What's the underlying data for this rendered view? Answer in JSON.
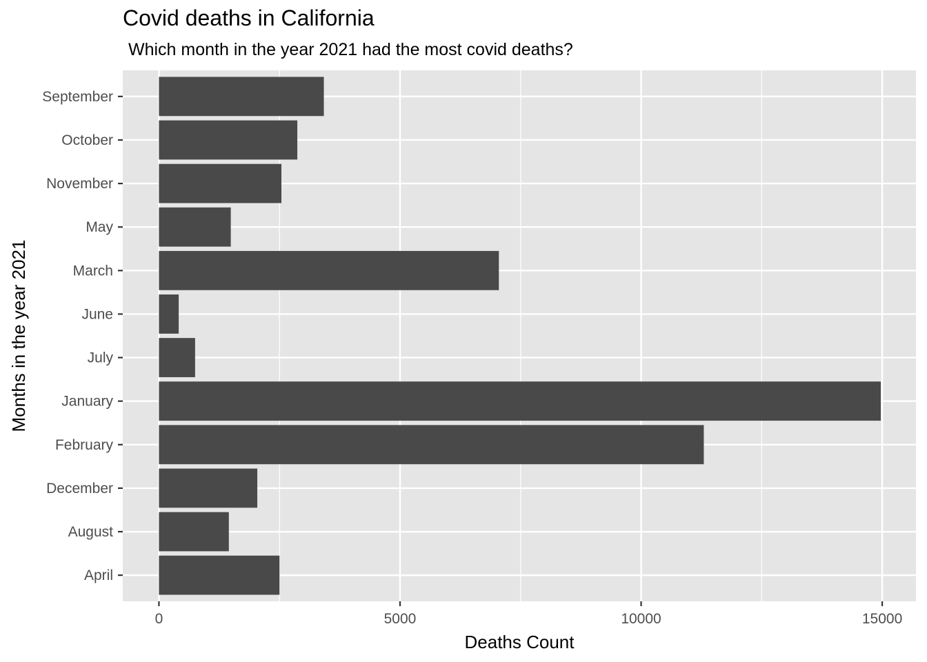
{
  "chart_data": {
    "type": "bar",
    "orientation": "horizontal",
    "title": "Covid deaths in California",
    "subtitle": "Which month in the year 2021 had the most covid deaths?",
    "xlabel": "Deaths Count",
    "ylabel": "Months in the year 2021",
    "xlim": [
      -750,
      15700
    ],
    "xticks": [
      0,
      5000,
      10000,
      15000
    ],
    "grid": true,
    "categories": [
      "April",
      "August",
      "December",
      "February",
      "January",
      "July",
      "June",
      "March",
      "May",
      "November",
      "October",
      "September"
    ],
    "values": [
      2500,
      1450,
      2040,
      11300,
      14970,
      750,
      410,
      7050,
      1490,
      2540,
      2870,
      3420
    ],
    "colors": {
      "panel": "#e5e5e5",
      "bar": "#494949",
      "grid": "#ffffff",
      "tick": "#333333"
    }
  }
}
